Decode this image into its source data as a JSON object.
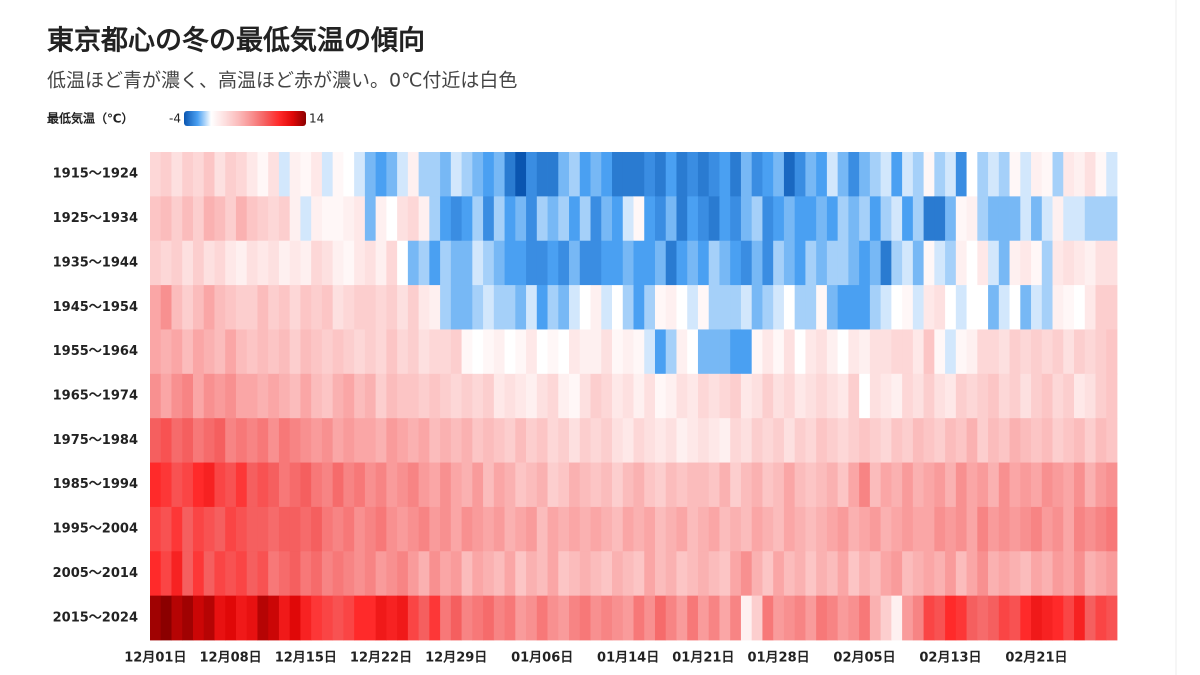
{
  "chart_data": {
    "type": "heatmap",
    "title": "東京都心の冬の最低気温の傾向",
    "subtitle": "低温ほど青が濃く、高温ほど赤が濃い。0℃付近は白色",
    "colorbar_label": "最低気温（℃）",
    "zlim": [
      -4,
      14
    ],
    "zticks": [
      -4,
      14
    ],
    "colors": [
      "#0a55b0",
      "#4aa0f2",
      "#ffffff",
      "#fde0e0",
      "#fbbcbc",
      "#f89090",
      "#f55f5f",
      "#ff2a2a",
      "#e00808",
      "#8b0000"
    ],
    "x": [
      "12月01日",
      null,
      null,
      null,
      null,
      null,
      null,
      "12月08日",
      null,
      null,
      null,
      null,
      null,
      null,
      "12月15日",
      null,
      null,
      null,
      null,
      null,
      null,
      "12月22日",
      null,
      null,
      null,
      null,
      null,
      null,
      "12月29日",
      null,
      null,
      null,
      null,
      null,
      null,
      null,
      "01月06日",
      null,
      null,
      null,
      null,
      null,
      null,
      null,
      "01月14日",
      null,
      null,
      null,
      null,
      null,
      null,
      "01月21日",
      null,
      null,
      null,
      null,
      null,
      null,
      "01月28日",
      null,
      null,
      null,
      null,
      null,
      null,
      null,
      "02月05日",
      null,
      null,
      null,
      null,
      null,
      null,
      null,
      "02月13日",
      null,
      null,
      null,
      null,
      null,
      null,
      null,
      "02月21日",
      null,
      null,
      null,
      null,
      null,
      null,
      null
    ],
    "y": [
      "1915～1924",
      "1925～1934",
      "1935～1944",
      "1945～1954",
      "1955～1964",
      "1965～1974",
      "1975～1984",
      "1985～1994",
      "1995～2004",
      "2005～2014",
      "2015～2024"
    ],
    "z": [
      [
        2.5,
        3,
        2,
        3,
        2.5,
        3.5,
        2,
        3,
        2.5,
        1.5,
        0.5,
        2,
        -0.5,
        1,
        0.5,
        1.5,
        -0.5,
        0.5,
        0,
        -0.5,
        -1.5,
        -2,
        -1.5,
        -0.5,
        1,
        -1,
        -1,
        -1.5,
        -0.5,
        -1,
        -1.5,
        -2,
        -1.5,
        -3,
        -4,
        -2.5,
        -3,
        -3,
        -1.5,
        -1,
        -2,
        -1.5,
        -2,
        -3,
        -3,
        -3,
        -2.5,
        -3,
        -2,
        -3,
        -2.5,
        -3,
        -2.5,
        -2,
        -3,
        -1.5,
        -2.5,
        -2,
        -1.5,
        -3.5,
        -2.5,
        -1.5,
        -2,
        -0.5,
        -1.5,
        -2.5,
        -1.5,
        -1,
        -0.5,
        -2,
        -0.5,
        -1,
        0.5,
        -1,
        -0.5,
        -2.5,
        0,
        -1,
        -0.5,
        -1,
        0.5,
        -0.5,
        1,
        0.5,
        -1,
        1.5,
        1,
        2,
        0.5,
        -0.5
      ],
      [
        3.5,
        4,
        3,
        4,
        3,
        4.5,
        4,
        3,
        4.5,
        3.5,
        3,
        2.5,
        3,
        1,
        -0.5,
        1,
        0.5,
        0.5,
        1,
        1.5,
        -1.5,
        1,
        0,
        2,
        2.5,
        1,
        -1,
        -2,
        -2.5,
        -2,
        -1,
        -2.5,
        -1,
        -2,
        -1.5,
        -2.5,
        -1,
        -1.5,
        -1,
        -2,
        -1,
        -2.5,
        -1.5,
        -2,
        -0.5,
        0.5,
        -2,
        -2.5,
        -1.5,
        -3,
        -2,
        -2.5,
        -3,
        -2,
        -2.5,
        -1.5,
        -1,
        -2.5,
        -2,
        -1.5,
        -2,
        -2,
        -1.5,
        -2,
        -1,
        -1.5,
        -1,
        -2,
        -1,
        -0.5,
        -2,
        -1,
        -3,
        -3,
        -1.5,
        0.5,
        1,
        -1,
        -1.5,
        -1.5,
        -1.5,
        -0.5,
        -1.5,
        -0.5,
        1,
        -0.5,
        -0.5,
        -1,
        -1,
        -1
      ],
      [
        3,
        2.5,
        3,
        2,
        3,
        2,
        2.5,
        1.5,
        1,
        2,
        1.5,
        2,
        1,
        1.5,
        1,
        2.5,
        2,
        1,
        0.5,
        1.5,
        2,
        1,
        2.5,
        0,
        -1.5,
        -1,
        -2,
        -1,
        -1.5,
        -1.5,
        -0.5,
        -1,
        -1.5,
        -2,
        -2,
        -2.5,
        -2.5,
        -2,
        -2.5,
        -1.5,
        -2.5,
        -2.5,
        -2,
        -2,
        -1.5,
        -2,
        -2,
        -1.5,
        -3,
        -2,
        -1.5,
        -2,
        -1,
        -1.5,
        -2,
        -2.5,
        -1.5,
        -2.5,
        -1,
        -1.5,
        -2,
        -1,
        -1.5,
        -1,
        -1,
        -1.5,
        -2,
        -1.5,
        -3,
        -1,
        -0.5,
        -1.5,
        0.5,
        -0.5,
        -1,
        1,
        0,
        1.5,
        -0.5,
        -1.5,
        1,
        1.5,
        0.5,
        -1,
        1.5,
        2,
        1.5,
        1,
        2,
        2
      ],
      [
        5,
        6,
        4,
        3,
        4,
        5,
        4,
        3.5,
        3,
        3,
        4,
        3,
        3.5,
        2.5,
        3.5,
        3,
        3.5,
        2,
        2.5,
        3,
        3,
        2.5,
        3,
        2,
        3,
        1.5,
        1,
        -1,
        -1.5,
        -1.5,
        -1,
        -0.5,
        -1,
        -1,
        -1.5,
        -0.5,
        -2,
        -1,
        -1.5,
        -0.5,
        0,
        1,
        -0.5,
        0,
        -1,
        -2,
        -1,
        0.5,
        1,
        0,
        -0.5,
        0.5,
        -1,
        -1,
        -1,
        -0.5,
        -1.5,
        -1,
        -0.5,
        0,
        -1,
        -1,
        0.5,
        -1.5,
        -2,
        -2,
        -2,
        -1,
        -0.5,
        0,
        0.5,
        -0.5,
        1.5,
        2,
        0,
        -0.5,
        0,
        0,
        -1.5,
        -0.5,
        0,
        -1.5,
        -0.5,
        -1,
        1,
        0.5,
        0,
        1.5,
        3,
        3
      ],
      [
        5,
        4.5,
        5,
        4,
        5,
        4.5,
        4,
        5,
        4,
        3.5,
        4,
        3.5,
        4,
        3,
        4,
        3.5,
        3,
        3.5,
        3,
        2.5,
        3,
        2.5,
        3.5,
        2.5,
        3,
        2,
        2.5,
        2.5,
        3,
        0.5,
        0,
        0.5,
        1,
        0,
        0.5,
        1.5,
        0,
        0.5,
        0,
        1.5,
        1,
        1,
        2,
        0.5,
        1,
        0.5,
        -0.5,
        -2,
        -1,
        1,
        0,
        -1.5,
        -1.5,
        -1.5,
        -2,
        -2,
        0.5,
        1.5,
        0.5,
        2,
        0,
        1.5,
        2,
        1,
        0,
        1.5,
        1,
        2,
        2,
        2.5,
        2.5,
        1.5,
        3.5,
        0.5,
        -0.5,
        0.5,
        1,
        2.5,
        2.5,
        2,
        3,
        2.5,
        3,
        2.5,
        3,
        2,
        3,
        2.5,
        3,
        3.5
      ],
      [
        6,
        5,
        6,
        6.5,
        5,
        6,
        5.5,
        6,
        5,
        5,
        4.5,
        5,
        4.5,
        4,
        5,
        4,
        3.5,
        4.5,
        5,
        4,
        4.5,
        3,
        4,
        3.5,
        3.5,
        3,
        3.5,
        3,
        2.5,
        3,
        2.5,
        3,
        1.5,
        2,
        1.5,
        1,
        2,
        2.5,
        1,
        0.5,
        2,
        3,
        2.5,
        1.5,
        2,
        1,
        2,
        0.5,
        1,
        2,
        1.5,
        2.5,
        2,
        2.5,
        3,
        1.5,
        2,
        3,
        2,
        2.5,
        1.5,
        2,
        2.5,
        2,
        1.5,
        3,
        0,
        2,
        1.5,
        1,
        2.5,
        2,
        3,
        2,
        1.5,
        3,
        2.5,
        3,
        3.5,
        2.5,
        3,
        2,
        3,
        3.5,
        2.5,
        3,
        1.5,
        2,
        3,
        3.5
      ],
      [
        8,
        8.5,
        7.5,
        8,
        7,
        7.5,
        8,
        6.5,
        7,
        6.5,
        7,
        6,
        7,
        6.5,
        6,
        5.5,
        6,
        5,
        5.5,
        5,
        5,
        4.5,
        5.5,
        5,
        4.5,
        5,
        4,
        4.5,
        4,
        4.5,
        3.5,
        4,
        3.5,
        3,
        4,
        3,
        3.5,
        2.5,
        3,
        2,
        3,
        2.5,
        3,
        2,
        1.5,
        2.5,
        2,
        1.5,
        2,
        1,
        1.5,
        2,
        1.5,
        1,
        2.5,
        2,
        3,
        2.5,
        3,
        2,
        3,
        2.5,
        3.5,
        3,
        2.5,
        3,
        3.5,
        3,
        2.5,
        3.5,
        3,
        4,
        3.5,
        3,
        4,
        3.5,
        4.5,
        3,
        4,
        3.5,
        4.5,
        4,
        3.5,
        4,
        3,
        3.5,
        4,
        3,
        4,
        3.5
      ],
      [
        10,
        9.5,
        8.5,
        9,
        10,
        10.5,
        9,
        8.5,
        9.5,
        8,
        8.5,
        8,
        7,
        7.5,
        8,
        7,
        6.5,
        7.5,
        6.5,
        7,
        6,
        6.5,
        5.5,
        6,
        6.5,
        5.5,
        5,
        6,
        5,
        4.5,
        5.5,
        4,
        5,
        4.5,
        3.5,
        4,
        4.5,
        3,
        3.5,
        4.5,
        4,
        3.5,
        4,
        3,
        4,
        4.5,
        3.5,
        3,
        4,
        3.5,
        4,
        4,
        3.5,
        4.5,
        3,
        4,
        4.5,
        3.5,
        4,
        5,
        4,
        3.5,
        4,
        4.5,
        3.5,
        5,
        6.5,
        4,
        5,
        4.5,
        5.5,
        4.5,
        5,
        5.5,
        4.5,
        6,
        5,
        5.5,
        4.5,
        6,
        5,
        5.5,
        5,
        6,
        5.5,
        5,
        6,
        4.5,
        5.5,
        6
      ],
      [
        9,
        8.5,
        9.5,
        8,
        9,
        8.5,
        8,
        9,
        8.5,
        8,
        8,
        7.5,
        8,
        8,
        7.5,
        8,
        7,
        6.5,
        7,
        6,
        6.5,
        7,
        6,
        5.5,
        6,
        6.5,
        5.5,
        6,
        5,
        6,
        5.5,
        5,
        5.5,
        4.5,
        5,
        5.5,
        4,
        5,
        4.5,
        5,
        4.5,
        5,
        4.5,
        4,
        5,
        4.5,
        5,
        4,
        4.5,
        5,
        4,
        4.5,
        5,
        4,
        4.5,
        4,
        5,
        4.5,
        4,
        5,
        4.5,
        4,
        4.5,
        5,
        5.5,
        4.5,
        5,
        5.5,
        4.5,
        5,
        5.5,
        5,
        5,
        6,
        5.5,
        6,
        5,
        6.5,
        5.5,
        6,
        5.5,
        6,
        6.5,
        5.5,
        6,
        5,
        6.5,
        6,
        6.5,
        7
      ],
      [
        10,
        9,
        10.5,
        8,
        9.5,
        8,
        9,
        8.5,
        9,
        8,
        8.5,
        7,
        7.5,
        8,
        7,
        7.5,
        6.5,
        7,
        6.5,
        6,
        6.5,
        5.5,
        6,
        6.5,
        5.5,
        4.5,
        6,
        5,
        5.5,
        4,
        5,
        4.5,
        4,
        5,
        3.5,
        4.5,
        4,
        5,
        3.5,
        4,
        4.5,
        4,
        3.5,
        4.5,
        4,
        3.5,
        5,
        4,
        4.5,
        3.5,
        4,
        4.5,
        4,
        3.5,
        5,
        6,
        4.5,
        3.5,
        5,
        4,
        4.5,
        3.5,
        4.5,
        4,
        5,
        3.5,
        4.5,
        4,
        5,
        5.5,
        4,
        4.5,
        5,
        4.5,
        5.5,
        4,
        5,
        6,
        4.5,
        5,
        4.5,
        4,
        5,
        4.5,
        5.5,
        5,
        6,
        4.5,
        5,
        5.5
      ],
      [
        13.5,
        14,
        13,
        13.5,
        12.5,
        13,
        11.5,
        12,
        11,
        11.5,
        13,
        12.5,
        11,
        12,
        10.5,
        9.5,
        9,
        8.5,
        9,
        10,
        10,
        11,
        10.5,
        11,
        9,
        8,
        9.5,
        7,
        8,
        6.5,
        7,
        7.5,
        6.5,
        7,
        5.5,
        6,
        7,
        6,
        5.5,
        6.5,
        7,
        6,
        6.5,
        6,
        5.5,
        7,
        6,
        7.5,
        6.5,
        5.5,
        7,
        5.5,
        6.5,
        5,
        6.5,
        1,
        3,
        7,
        5.5,
        6,
        6.5,
        5.5,
        7,
        6.5,
        5.5,
        6,
        7,
        4.5,
        3,
        1,
        5.5,
        6.5,
        9,
        8.5,
        10,
        9.5,
        8,
        7.5,
        8,
        9,
        8.5,
        10,
        11,
        10.5,
        10,
        9,
        10.5,
        8,
        9,
        8.5
      ]
    ]
  }
}
